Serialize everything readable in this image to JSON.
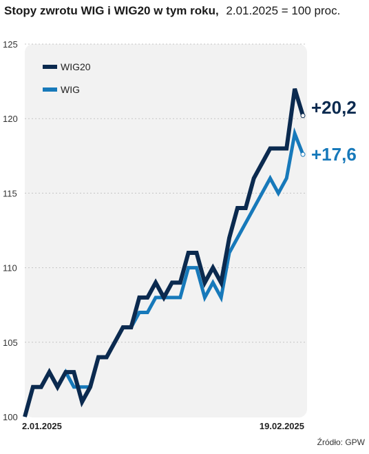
{
  "chart_data": {
    "type": "line",
    "title": "Stopy zwrotu WIG i WIG20 w tym roku,",
    "subtitle": "2.01.2025 = 100 proc.",
    "source": "Źródło: GPW",
    "x_tick_labels": [
      "2.01.2025",
      "19.02.2025"
    ],
    "y_ticks": [
      100,
      105,
      110,
      115,
      120,
      125
    ],
    "ylim": [
      100,
      125
    ],
    "grid": true,
    "legend_position": "top-left",
    "series": [
      {
        "name": "WIG20",
        "color": "#0b2a4f",
        "end_label": "+20,2",
        "values": [
          100,
          102,
          102,
          103,
          102,
          103,
          103,
          101,
          102,
          104,
          104,
          105,
          106,
          106,
          108,
          108,
          109,
          108,
          109,
          109,
          111,
          111,
          109,
          110,
          109,
          112,
          114,
          114,
          116,
          117,
          118,
          118,
          118,
          122,
          120.2
        ]
      },
      {
        "name": "WIG",
        "color": "#1779ba",
        "end_label": "+17,6",
        "values": [
          100,
          102,
          102,
          103,
          102,
          103,
          102,
          102,
          102,
          104,
          104,
          105,
          106,
          106,
          107,
          107,
          108,
          108,
          108,
          108,
          110,
          110,
          108,
          109,
          108,
          111,
          112,
          113,
          114,
          115,
          116,
          115,
          116,
          119,
          117.6
        ]
      }
    ]
  }
}
